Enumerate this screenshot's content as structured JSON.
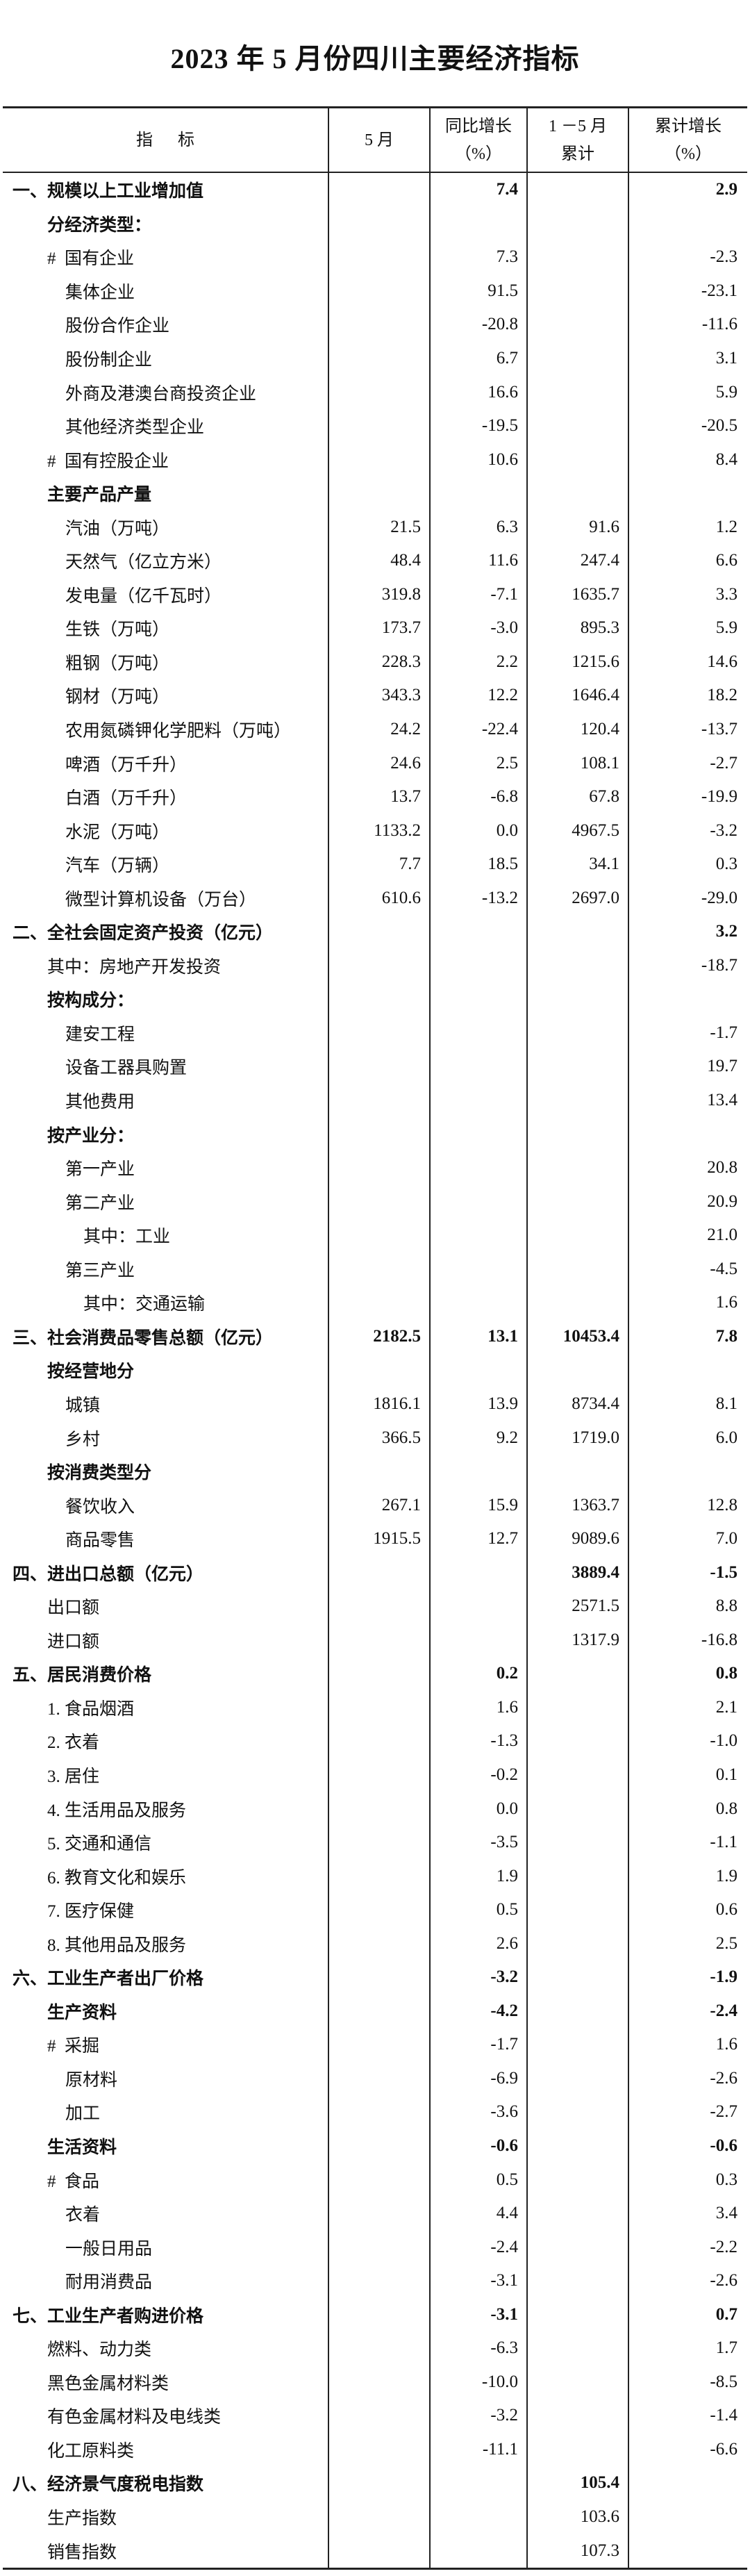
{
  "title": "2023 年 5 月份四川主要经济指标",
  "header": {
    "indicator": "指      标",
    "month": "5 月",
    "yoy_line1": "同比增长",
    "yoy_line2": "（%）",
    "cum_line1": "1 －5 月",
    "cum_line2": "累计",
    "cumg_line1": "累计增长",
    "cumg_line2": "（%）"
  },
  "rows": [
    {
      "label": "一、规模以上工业增加值",
      "level": 0,
      "bold": true,
      "m": "",
      "yoy": "7.4",
      "cum": "",
      "cumg": "2.9"
    },
    {
      "label": "分经济类型：",
      "level": 1,
      "bold": true,
      "m": "",
      "yoy": "",
      "cum": "",
      "cumg": ""
    },
    {
      "label": "#  国有企业",
      "level": 1,
      "bold": false,
      "m": "",
      "yoy": "7.3",
      "cum": "",
      "cumg": "-2.3"
    },
    {
      "label": "集体企业",
      "level": 2,
      "bold": false,
      "m": "",
      "yoy": "91.5",
      "cum": "",
      "cumg": "-23.1"
    },
    {
      "label": "股份合作企业",
      "level": 2,
      "bold": false,
      "m": "",
      "yoy": "-20.8",
      "cum": "",
      "cumg": "-11.6"
    },
    {
      "label": "股份制企业",
      "level": 2,
      "bold": false,
      "m": "",
      "yoy": "6.7",
      "cum": "",
      "cumg": "3.1"
    },
    {
      "label": "外商及港澳台商投资企业",
      "level": 2,
      "bold": false,
      "m": "",
      "yoy": "16.6",
      "cum": "",
      "cumg": "5.9"
    },
    {
      "label": "其他经济类型企业",
      "level": 2,
      "bold": false,
      "m": "",
      "yoy": "-19.5",
      "cum": "",
      "cumg": "-20.5"
    },
    {
      "label": "#  国有控股企业",
      "level": 1,
      "bold": false,
      "m": "",
      "yoy": "10.6",
      "cum": "",
      "cumg": "8.4"
    },
    {
      "label": "主要产品产量",
      "level": 1,
      "bold": true,
      "m": "",
      "yoy": "",
      "cum": "",
      "cumg": ""
    },
    {
      "label": "汽油（万吨）",
      "level": 2,
      "bold": false,
      "m": "21.5",
      "yoy": "6.3",
      "cum": "91.6",
      "cumg": "1.2"
    },
    {
      "label": "天然气（亿立方米）",
      "level": 2,
      "bold": false,
      "m": "48.4",
      "yoy": "11.6",
      "cum": "247.4",
      "cumg": "6.6"
    },
    {
      "label": "发电量（亿千瓦时）",
      "level": 2,
      "bold": false,
      "m": "319.8",
      "yoy": "-7.1",
      "cum": "1635.7",
      "cumg": "3.3"
    },
    {
      "label": "生铁（万吨）",
      "level": 2,
      "bold": false,
      "m": "173.7",
      "yoy": "-3.0",
      "cum": "895.3",
      "cumg": "5.9"
    },
    {
      "label": "粗钢（万吨）",
      "level": 2,
      "bold": false,
      "m": "228.3",
      "yoy": "2.2",
      "cum": "1215.6",
      "cumg": "14.6"
    },
    {
      "label": "钢材（万吨）",
      "level": 2,
      "bold": false,
      "m": "343.3",
      "yoy": "12.2",
      "cum": "1646.4",
      "cumg": "18.2"
    },
    {
      "label": "农用氮磷钾化学肥料（万吨）",
      "level": 2,
      "bold": false,
      "m": "24.2",
      "yoy": "-22.4",
      "cum": "120.4",
      "cumg": "-13.7"
    },
    {
      "label": "啤酒（万千升）",
      "level": 2,
      "bold": false,
      "m": "24.6",
      "yoy": "2.5",
      "cum": "108.1",
      "cumg": "-2.7"
    },
    {
      "label": "白酒（万千升）",
      "level": 2,
      "bold": false,
      "m": "13.7",
      "yoy": "-6.8",
      "cum": "67.8",
      "cumg": "-19.9"
    },
    {
      "label": "水泥（万吨）",
      "level": 2,
      "bold": false,
      "m": "1133.2",
      "yoy": "0.0",
      "cum": "4967.5",
      "cumg": "-3.2"
    },
    {
      "label": "汽车（万辆）",
      "level": 2,
      "bold": false,
      "m": "7.7",
      "yoy": "18.5",
      "cum": "34.1",
      "cumg": "0.3"
    },
    {
      "label": "微型计算机设备（万台）",
      "level": 2,
      "bold": false,
      "m": "610.6",
      "yoy": "-13.2",
      "cum": "2697.0",
      "cumg": "-29.0"
    },
    {
      "label": "二、全社会固定资产投资（亿元）",
      "level": 0,
      "bold": true,
      "m": "",
      "yoy": "",
      "cum": "",
      "cumg": "3.2"
    },
    {
      "label": "其中：房地产开发投资",
      "level": 1,
      "bold": false,
      "m": "",
      "yoy": "",
      "cum": "",
      "cumg": "-18.7"
    },
    {
      "label": "按构成分：",
      "level": 1,
      "bold": true,
      "m": "",
      "yoy": "",
      "cum": "",
      "cumg": ""
    },
    {
      "label": "建安工程",
      "level": 2,
      "bold": false,
      "m": "",
      "yoy": "",
      "cum": "",
      "cumg": "-1.7"
    },
    {
      "label": "设备工器具购置",
      "level": 2,
      "bold": false,
      "m": "",
      "yoy": "",
      "cum": "",
      "cumg": "19.7"
    },
    {
      "label": "其他费用",
      "level": 2,
      "bold": false,
      "m": "",
      "yoy": "",
      "cum": "",
      "cumg": "13.4"
    },
    {
      "label": "按产业分：",
      "level": 1,
      "bold": true,
      "m": "",
      "yoy": "",
      "cum": "",
      "cumg": ""
    },
    {
      "label": "第一产业",
      "level": 2,
      "bold": false,
      "m": "",
      "yoy": "",
      "cum": "",
      "cumg": "20.8"
    },
    {
      "label": "第二产业",
      "level": 2,
      "bold": false,
      "m": "",
      "yoy": "",
      "cum": "",
      "cumg": "20.9"
    },
    {
      "label": "其中：工业",
      "level": 3,
      "bold": false,
      "m": "",
      "yoy": "",
      "cum": "",
      "cumg": "21.0"
    },
    {
      "label": "第三产业",
      "level": 2,
      "bold": false,
      "m": "",
      "yoy": "",
      "cum": "",
      "cumg": "-4.5"
    },
    {
      "label": "其中：交通运输",
      "level": 3,
      "bold": false,
      "m": "",
      "yoy": "",
      "cum": "",
      "cumg": "1.6"
    },
    {
      "label": "三、社会消费品零售总额（亿元）",
      "level": 0,
      "bold": true,
      "m": "2182.5",
      "yoy": "13.1",
      "cum": "10453.4",
      "cumg": "7.8"
    },
    {
      "label": "按经营地分",
      "level": 1,
      "bold": true,
      "m": "",
      "yoy": "",
      "cum": "",
      "cumg": ""
    },
    {
      "label": "城镇",
      "level": 2,
      "bold": false,
      "m": "1816.1",
      "yoy": "13.9",
      "cum": "8734.4",
      "cumg": "8.1"
    },
    {
      "label": "乡村",
      "level": 2,
      "bold": false,
      "m": "366.5",
      "yoy": "9.2",
      "cum": "1719.0",
      "cumg": "6.0"
    },
    {
      "label": "按消费类型分",
      "level": 1,
      "bold": true,
      "m": "",
      "yoy": "",
      "cum": "",
      "cumg": ""
    },
    {
      "label": "餐饮收入",
      "level": 2,
      "bold": false,
      "m": "267.1",
      "yoy": "15.9",
      "cum": "1363.7",
      "cumg": "12.8"
    },
    {
      "label": "商品零售",
      "level": 2,
      "bold": false,
      "m": "1915.5",
      "yoy": "12.7",
      "cum": "9089.6",
      "cumg": "7.0"
    },
    {
      "label": "四、进出口总额（亿元）",
      "level": 0,
      "bold": true,
      "m": "",
      "yoy": "",
      "cum": "3889.4",
      "cumg": "-1.5"
    },
    {
      "label": "出口额",
      "level": 1,
      "bold": false,
      "m": "",
      "yoy": "",
      "cum": "2571.5",
      "cumg": "8.8"
    },
    {
      "label": "进口额",
      "level": 1,
      "bold": false,
      "m": "",
      "yoy": "",
      "cum": "1317.9",
      "cumg": "-16.8"
    },
    {
      "label": "五、居民消费价格",
      "level": 0,
      "bold": true,
      "m": "",
      "yoy": "0.2",
      "cum": "",
      "cumg": "0.8"
    },
    {
      "label": "1. 食品烟酒",
      "level": 1,
      "bold": false,
      "m": "",
      "yoy": "1.6",
      "cum": "",
      "cumg": "2.1"
    },
    {
      "label": "2. 衣着",
      "level": 1,
      "bold": false,
      "m": "",
      "yoy": "-1.3",
      "cum": "",
      "cumg": "-1.0"
    },
    {
      "label": "3. 居住",
      "level": 1,
      "bold": false,
      "m": "",
      "yoy": "-0.2",
      "cum": "",
      "cumg": "0.1"
    },
    {
      "label": "4. 生活用品及服务",
      "level": 1,
      "bold": false,
      "m": "",
      "yoy": "0.0",
      "cum": "",
      "cumg": "0.8"
    },
    {
      "label": "5. 交通和通信",
      "level": 1,
      "bold": false,
      "m": "",
      "yoy": "-3.5",
      "cum": "",
      "cumg": "-1.1"
    },
    {
      "label": "6. 教育文化和娱乐",
      "level": 1,
      "bold": false,
      "m": "",
      "yoy": "1.9",
      "cum": "",
      "cumg": "1.9"
    },
    {
      "label": "7. 医疗保健",
      "level": 1,
      "bold": false,
      "m": "",
      "yoy": "0.5",
      "cum": "",
      "cumg": "0.6"
    },
    {
      "label": "8. 其他用品及服务",
      "level": 1,
      "bold": false,
      "m": "",
      "yoy": "2.6",
      "cum": "",
      "cumg": "2.5"
    },
    {
      "label": "六、工业生产者出厂价格",
      "level": 0,
      "bold": true,
      "m": "",
      "yoy": "-3.2",
      "cum": "",
      "cumg": "-1.9"
    },
    {
      "label": "生产资料",
      "level": 1,
      "bold": true,
      "m": "",
      "yoy": "-4.2",
      "cum": "",
      "cumg": "-2.4"
    },
    {
      "label": "#  采掘",
      "level": 1,
      "bold": false,
      "m": "",
      "yoy": "-1.7",
      "cum": "",
      "cumg": "1.6"
    },
    {
      "label": "原材料",
      "level": 2,
      "bold": false,
      "m": "",
      "yoy": "-6.9",
      "cum": "",
      "cumg": "-2.6"
    },
    {
      "label": "加工",
      "level": 2,
      "bold": false,
      "m": "",
      "yoy": "-3.6",
      "cum": "",
      "cumg": "-2.7"
    },
    {
      "label": "生活资料",
      "level": 1,
      "bold": true,
      "m": "",
      "yoy": "-0.6",
      "cum": "",
      "cumg": "-0.6"
    },
    {
      "label": "#  食品",
      "level": 1,
      "bold": false,
      "m": "",
      "yoy": "0.5",
      "cum": "",
      "cumg": "0.3"
    },
    {
      "label": "衣着",
      "level": 2,
      "bold": false,
      "m": "",
      "yoy": "4.4",
      "cum": "",
      "cumg": "3.4"
    },
    {
      "label": "一般日用品",
      "level": 2,
      "bold": false,
      "m": "",
      "yoy": "-2.4",
      "cum": "",
      "cumg": "-2.2"
    },
    {
      "label": "耐用消费品",
      "level": 2,
      "bold": false,
      "m": "",
      "yoy": "-3.1",
      "cum": "",
      "cumg": "-2.6"
    },
    {
      "label": "七、工业生产者购进价格",
      "level": 0,
      "bold": true,
      "m": "",
      "yoy": "-3.1",
      "cum": "",
      "cumg": "0.7"
    },
    {
      "label": "燃料、动力类",
      "level": 1,
      "bold": false,
      "m": "",
      "yoy": "-6.3",
      "cum": "",
      "cumg": "1.7"
    },
    {
      "label": "黑色金属材料类",
      "level": 1,
      "bold": false,
      "m": "",
      "yoy": "-10.0",
      "cum": "",
      "cumg": "-8.5"
    },
    {
      "label": "有色金属材料及电线类",
      "level": 1,
      "bold": false,
      "m": "",
      "yoy": "-3.2",
      "cum": "",
      "cumg": "-1.4"
    },
    {
      "label": "化工原料类",
      "level": 1,
      "bold": false,
      "m": "",
      "yoy": "-11.1",
      "cum": "",
      "cumg": "-6.6"
    },
    {
      "label": "八、经济景气度税电指数",
      "level": 0,
      "bold": true,
      "m": "",
      "yoy": "",
      "cum": "105.4",
      "cumg": ""
    },
    {
      "label": "生产指数",
      "level": 1,
      "bold": false,
      "m": "",
      "yoy": "",
      "cum": "103.6",
      "cumg": ""
    },
    {
      "label": "销售指数",
      "level": 1,
      "bold": false,
      "m": "",
      "yoy": "",
      "cum": "107.3",
      "cumg": ""
    }
  ]
}
